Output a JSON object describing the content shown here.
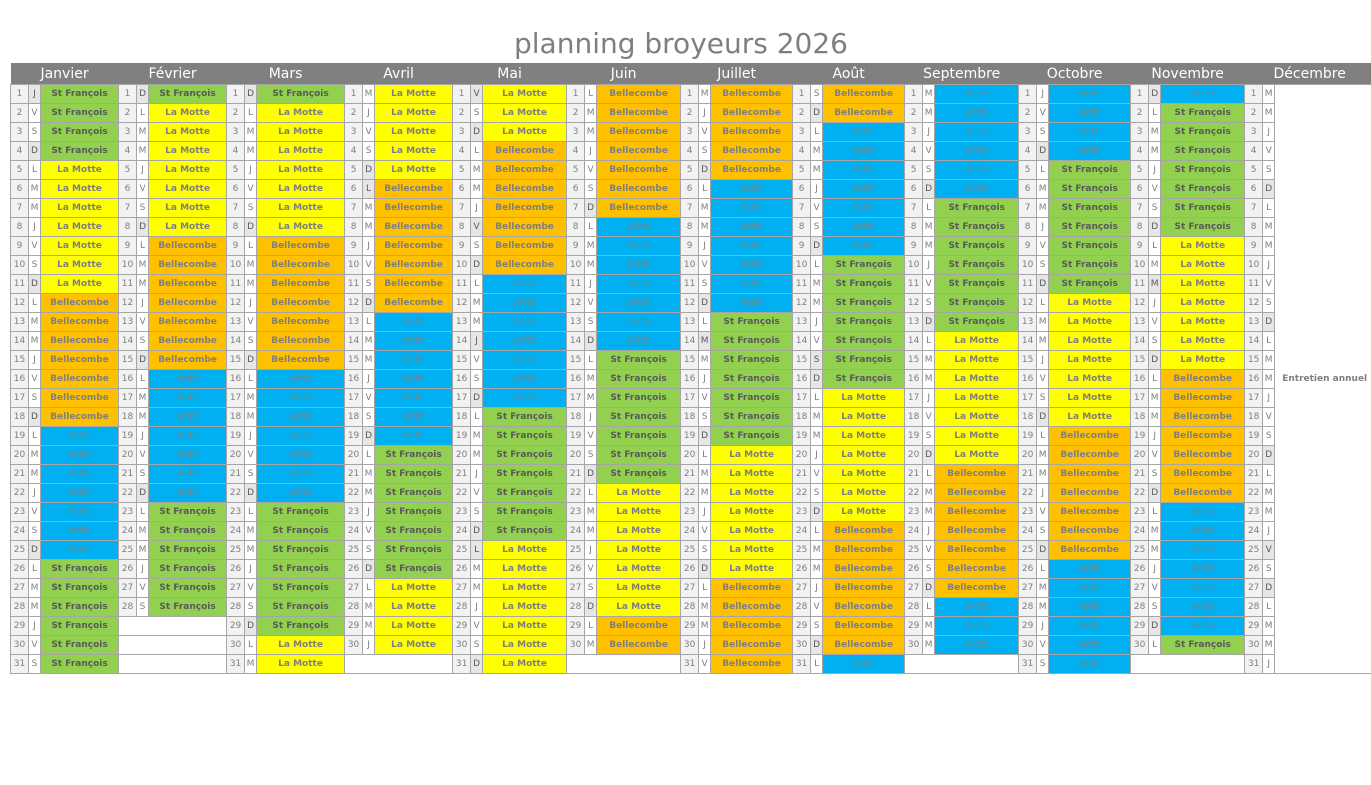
{
  "title": "planning broyeurs 2026",
  "legend": {
    "SF": {
      "label": "St François",
      "color": "#92d050"
    },
    "LM": {
      "label": "La Motte",
      "color": "#ffff00"
    },
    "BC": {
      "label": "Bellecombe",
      "color": "#ffc000"
    },
    "AR": {
      "label": "Arith",
      "color": "#00b0f0"
    }
  },
  "december_note": "Entretien annuel",
  "months": [
    {
      "name": "Janvier",
      "first_dow": 4,
      "days": 31,
      "holidays": [
        1
      ],
      "ranges": [
        [
          1,
          4,
          "SF"
        ],
        [
          5,
          11,
          "LM"
        ],
        [
          12,
          18,
          "BC"
        ],
        [
          19,
          25,
          "AR"
        ],
        [
          26,
          31,
          "SF"
        ]
      ]
    },
    {
      "name": "Février",
      "first_dow": 0,
      "days": 28,
      "holidays": [],
      "ranges": [
        [
          1,
          1,
          "SF"
        ],
        [
          2,
          8,
          "LM"
        ],
        [
          9,
          15,
          "BC"
        ],
        [
          16,
          22,
          "AR"
        ],
        [
          23,
          28,
          "SF"
        ]
      ]
    },
    {
      "name": "Mars",
      "first_dow": 0,
      "days": 31,
      "holidays": [],
      "ranges": [
        [
          1,
          1,
          "SF"
        ],
        [
          2,
          8,
          "LM"
        ],
        [
          9,
          15,
          "BC"
        ],
        [
          16,
          22,
          "AR"
        ],
        [
          23,
          29,
          "SF"
        ],
        [
          30,
          31,
          "LM"
        ]
      ]
    },
    {
      "name": "Avril",
      "first_dow": 3,
      "days": 30,
      "holidays": [
        6
      ],
      "ranges": [
        [
          1,
          5,
          "LM"
        ],
        [
          6,
          12,
          "BC"
        ],
        [
          13,
          19,
          "AR"
        ],
        [
          20,
          26,
          "SF"
        ],
        [
          27,
          30,
          "LM"
        ]
      ]
    },
    {
      "name": "Mai",
      "first_dow": 5,
      "days": 31,
      "holidays": [
        1,
        8,
        14,
        25
      ],
      "ranges": [
        [
          1,
          3,
          "LM"
        ],
        [
          4,
          10,
          "BC"
        ],
        [
          11,
          17,
          "AR"
        ],
        [
          18,
          24,
          "SF"
        ],
        [
          25,
          31,
          "LM"
        ]
      ]
    },
    {
      "name": "Juin",
      "first_dow": 1,
      "days": 30,
      "holidays": [],
      "ranges": [
        [
          1,
          7,
          "BC"
        ],
        [
          8,
          14,
          "AR"
        ],
        [
          15,
          21,
          "SF"
        ],
        [
          22,
          28,
          "LM"
        ],
        [
          29,
          30,
          "BC"
        ]
      ]
    },
    {
      "name": "Juillet",
      "first_dow": 3,
      "days": 31,
      "holidays": [
        14
      ],
      "ranges": [
        [
          1,
          5,
          "BC"
        ],
        [
          6,
          12,
          "AR"
        ],
        [
          13,
          19,
          "SF"
        ],
        [
          20,
          26,
          "LM"
        ],
        [
          27,
          31,
          "BC"
        ]
      ]
    },
    {
      "name": "Août",
      "first_dow": 6,
      "days": 31,
      "holidays": [
        15
      ],
      "ranges": [
        [
          1,
          2,
          "BC"
        ],
        [
          3,
          9,
          "AR"
        ],
        [
          10,
          16,
          "SF"
        ],
        [
          17,
          23,
          "LM"
        ],
        [
          24,
          30,
          "BC"
        ],
        [
          31,
          31,
          "AR"
        ]
      ]
    },
    {
      "name": "Septembre",
      "first_dow": 2,
      "days": 30,
      "holidays": [],
      "ranges": [
        [
          1,
          6,
          "AR"
        ],
        [
          7,
          13,
          "SF"
        ],
        [
          14,
          20,
          "LM"
        ],
        [
          21,
          27,
          "BC"
        ],
        [
          28,
          30,
          "AR"
        ]
      ]
    },
    {
      "name": "Octobre",
      "first_dow": 4,
      "days": 31,
      "holidays": [],
      "ranges": [
        [
          1,
          4,
          "AR"
        ],
        [
          5,
          11,
          "SF"
        ],
        [
          12,
          18,
          "LM"
        ],
        [
          19,
          25,
          "BC"
        ],
        [
          26,
          31,
          "AR"
        ]
      ]
    },
    {
      "name": "Novembre",
      "first_dow": 0,
      "days": 30,
      "holidays": [
        1,
        11
      ],
      "ranges": [
        [
          1,
          1,
          "AR"
        ],
        [
          2,
          8,
          "SF"
        ],
        [
          9,
          15,
          "LM"
        ],
        [
          16,
          22,
          "BC"
        ],
        [
          23,
          29,
          "AR"
        ],
        [
          30,
          30,
          "SF"
        ]
      ]
    },
    {
      "name": "Décembre",
      "first_dow": 2,
      "days": 31,
      "holidays": [
        25
      ],
      "ranges": []
    }
  ],
  "dow_letters": [
    "D",
    "L",
    "M",
    "M",
    "J",
    "V",
    "S"
  ]
}
